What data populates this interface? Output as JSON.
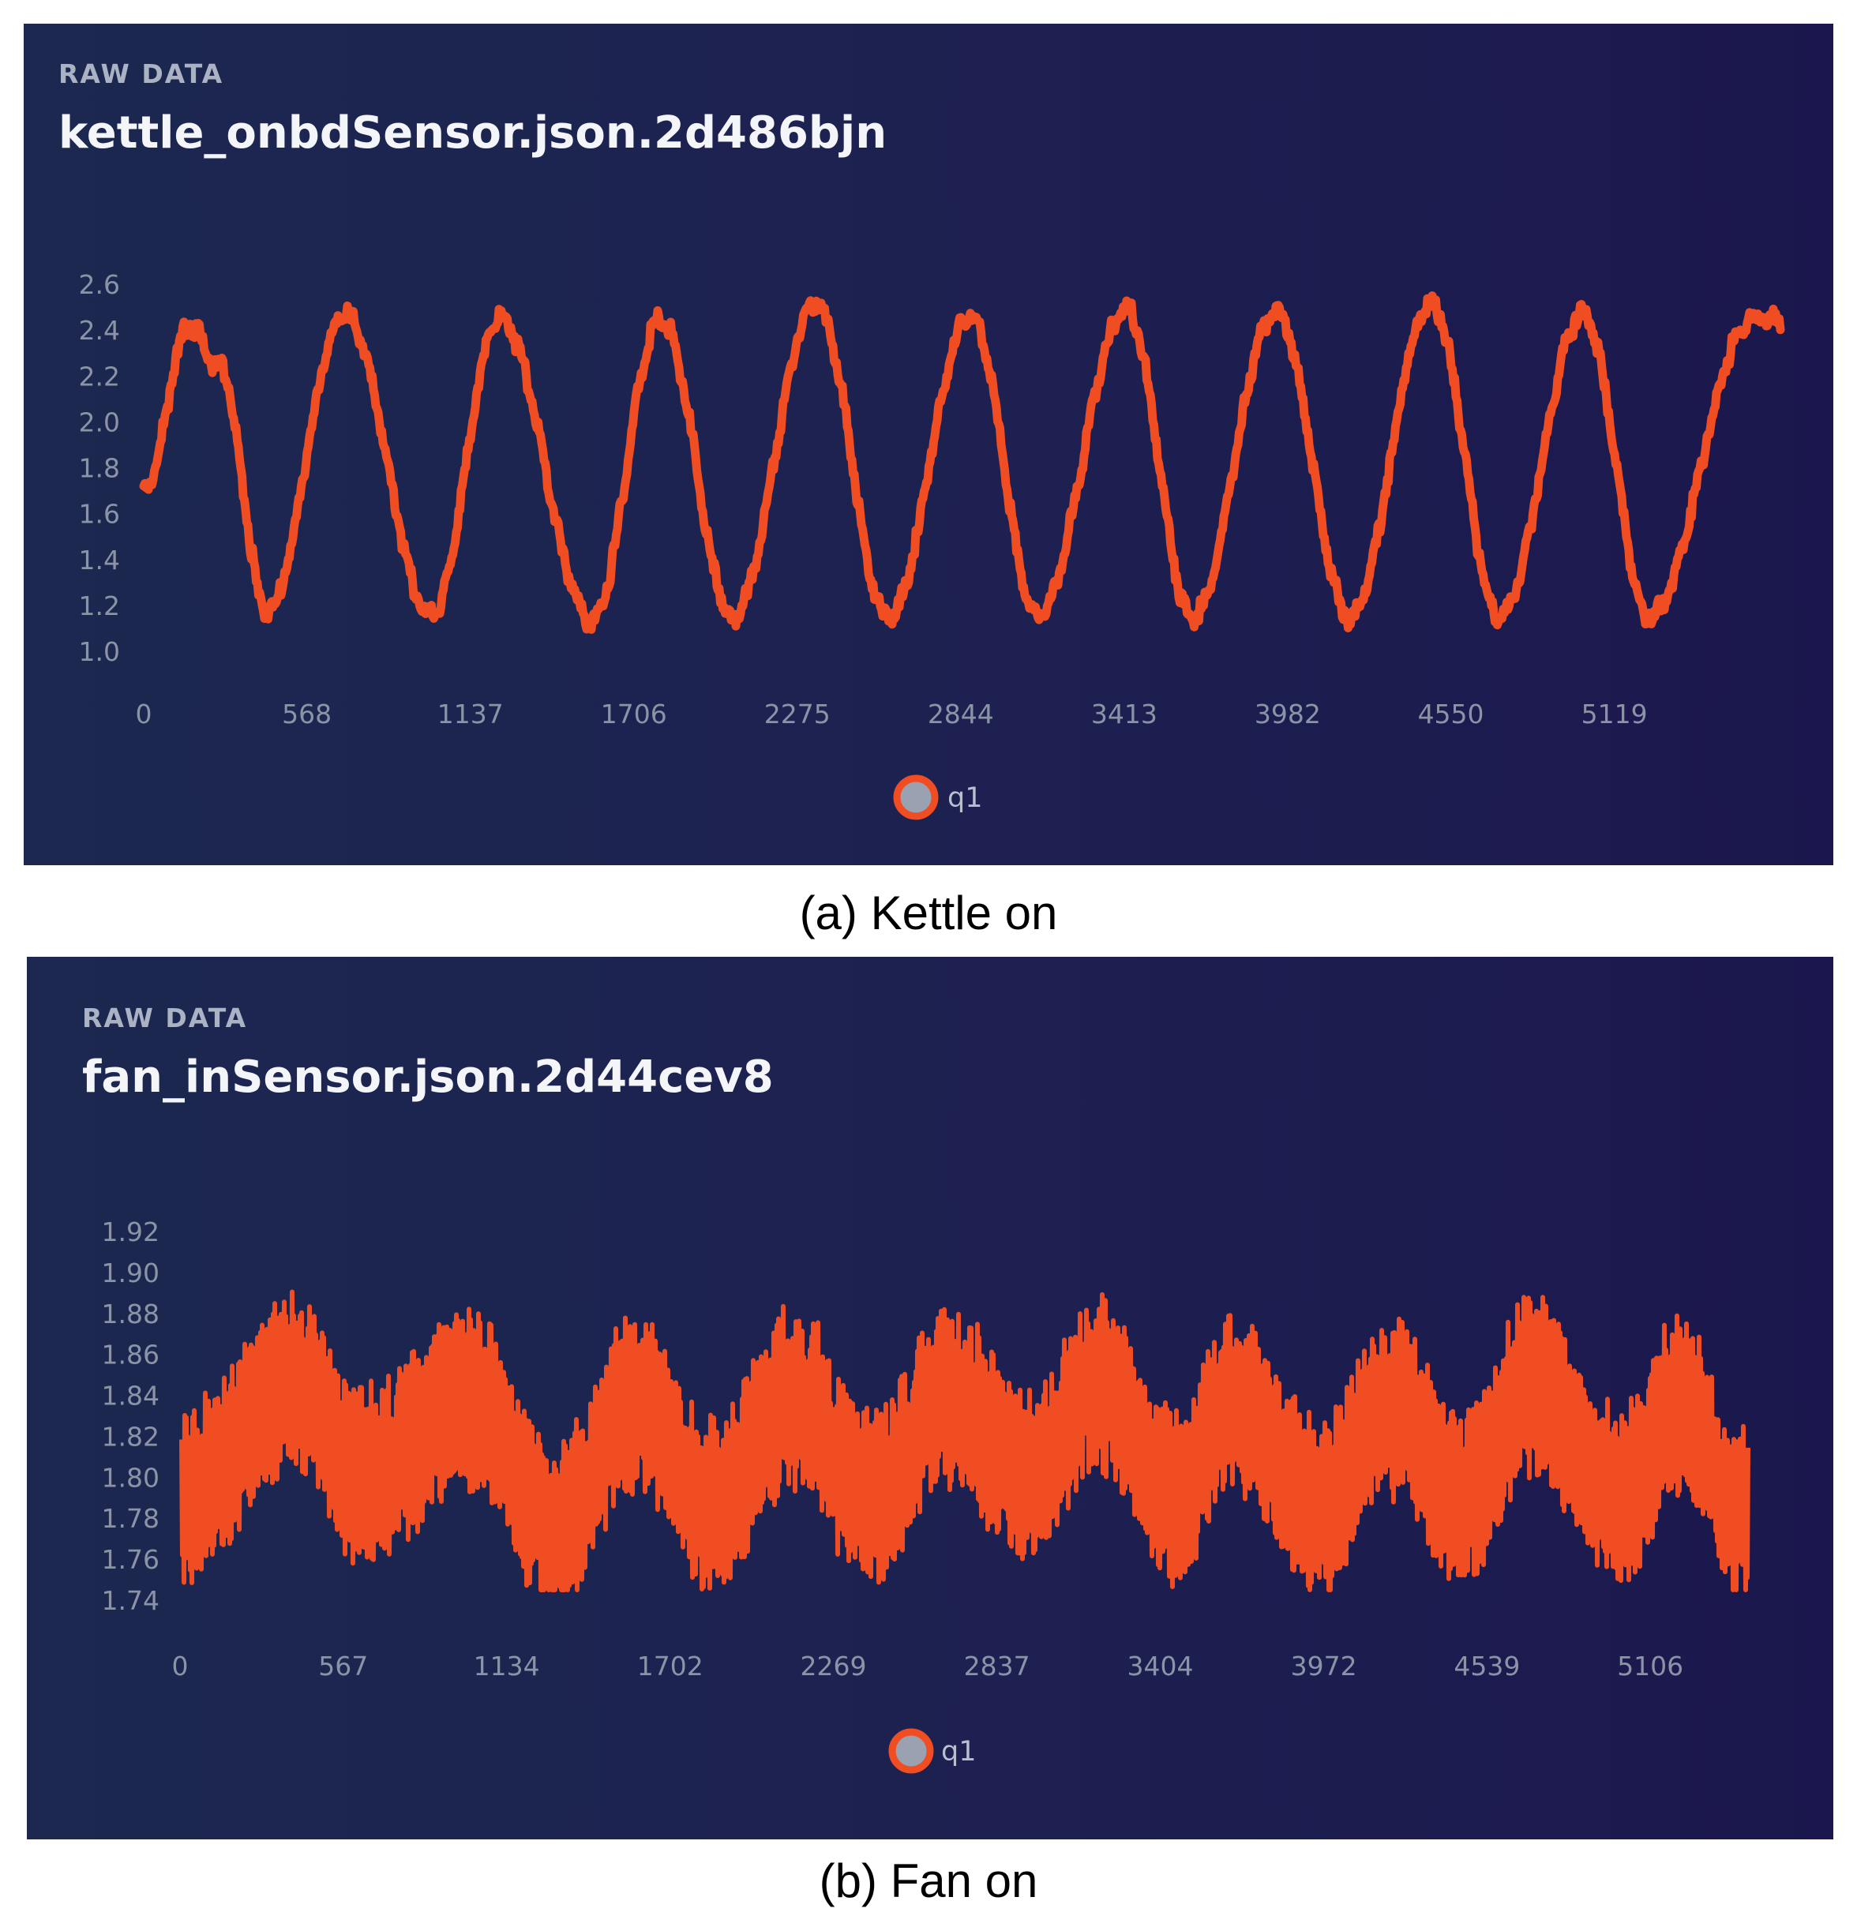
{
  "panels": [
    {
      "eyebrow": "RAW DATA",
      "title": "kettle_onbdSensor.json.2d486bjn",
      "caption": "(a) Kettle on",
      "legend": "q1"
    },
    {
      "eyebrow": "RAW DATA",
      "title": "fan_inSensor.json.2d44cev8",
      "caption": "(b) Fan on",
      "legend": "q1"
    }
  ],
  "colors": {
    "series": "#f04d23",
    "legend_fill": "#9aa1b0",
    "tick": "#8b93a6"
  },
  "chart_data": [
    {
      "type": "line",
      "title": "kettle_onbdSensor.json.2d486bjn",
      "series": [
        {
          "name": "q1",
          "pattern": "periodic square-like wave, ~10 cycles, low ~1.15, high ~2.45, with small jitter"
        }
      ],
      "x_ticks": [
        "0",
        "568",
        "1137",
        "1706",
        "2275",
        "2844",
        "3413",
        "3982",
        "4550",
        "5119"
      ],
      "y_ticks": [
        "1.0",
        "1.2",
        "1.4",
        "1.6",
        "1.8",
        "2.0",
        "2.2",
        "2.4",
        "2.6"
      ],
      "xlim": [
        0,
        5700
      ],
      "ylim": [
        1.0,
        2.6
      ],
      "anchor_points": [
        {
          "x": 0,
          "y": 1.7
        },
        {
          "x": 160,
          "y": 2.42
        },
        {
          "x": 260,
          "y": 2.25
        },
        {
          "x": 430,
          "y": 1.18
        },
        {
          "x": 700,
          "y": 2.47
        },
        {
          "x": 1000,
          "y": 1.15
        },
        {
          "x": 1240,
          "y": 2.45
        },
        {
          "x": 1560,
          "y": 1.13
        },
        {
          "x": 1800,
          "y": 2.45
        },
        {
          "x": 2050,
          "y": 1.15
        },
        {
          "x": 2340,
          "y": 2.52
        },
        {
          "x": 2590,
          "y": 1.15
        },
        {
          "x": 2880,
          "y": 2.47
        },
        {
          "x": 3110,
          "y": 1.15
        },
        {
          "x": 3420,
          "y": 2.49
        },
        {
          "x": 3650,
          "y": 1.15
        },
        {
          "x": 3940,
          "y": 2.48
        },
        {
          "x": 4200,
          "y": 1.15
        },
        {
          "x": 4480,
          "y": 2.52
        },
        {
          "x": 4720,
          "y": 1.15
        },
        {
          "x": 5010,
          "y": 2.47
        },
        {
          "x": 5240,
          "y": 1.15
        },
        {
          "x": 5600,
          "y": 2.45
        }
      ],
      "legend": "q1"
    },
    {
      "type": "line",
      "title": "fan_inSensor.json.2d44cev8",
      "series": [
        {
          "name": "q1",
          "pattern": "dense high-frequency noise around 1.80-1.84 with ~10 slow humps, range 1.745-1.905"
        }
      ],
      "x_ticks": [
        "0",
        "567",
        "1134",
        "1702",
        "2269",
        "2837",
        "3404",
        "3972",
        "4539",
        "5106"
      ],
      "y_ticks": [
        "1.74",
        "1.76",
        "1.78",
        "1.80",
        "1.82",
        "1.84",
        "1.86",
        "1.88",
        "1.90",
        "1.92"
      ],
      "xlim": [
        0,
        5440
      ],
      "ylim": [
        1.74,
        1.92
      ],
      "anchor_points": [
        {
          "x": 0,
          "y": 1.79
        },
        {
          "x": 380,
          "y": 1.845
        },
        {
          "x": 640,
          "y": 1.8
        },
        {
          "x": 1000,
          "y": 1.84
        },
        {
          "x": 1300,
          "y": 1.775
        },
        {
          "x": 1580,
          "y": 1.835
        },
        {
          "x": 1850,
          "y": 1.785
        },
        {
          "x": 2120,
          "y": 1.84
        },
        {
          "x": 2400,
          "y": 1.79
        },
        {
          "x": 2650,
          "y": 1.84
        },
        {
          "x": 2950,
          "y": 1.8
        },
        {
          "x": 3180,
          "y": 1.845
        },
        {
          "x": 3450,
          "y": 1.79
        },
        {
          "x": 3650,
          "y": 1.835
        },
        {
          "x": 3960,
          "y": 1.785
        },
        {
          "x": 4180,
          "y": 1.835
        },
        {
          "x": 4460,
          "y": 1.79
        },
        {
          "x": 4680,
          "y": 1.845
        },
        {
          "x": 5000,
          "y": 1.79
        },
        {
          "x": 5200,
          "y": 1.835
        },
        {
          "x": 5440,
          "y": 1.78
        }
      ],
      "legend": "q1"
    }
  ]
}
